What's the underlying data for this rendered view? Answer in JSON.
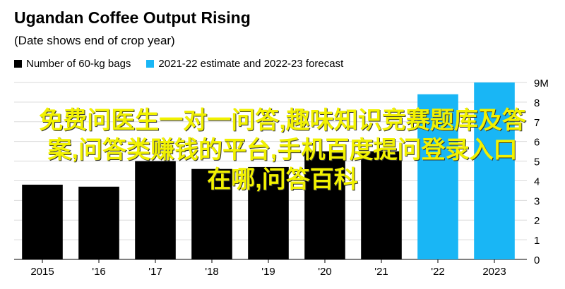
{
  "chart_data": {
    "type": "bar",
    "title": "Ugandan Coffee Output Rising",
    "subtitle": "(Date shows end of crop year)",
    "categories": [
      "2015",
      "'16",
      "'17",
      "'18",
      "'19",
      "'20",
      "'21",
      "'22",
      "2023"
    ],
    "values": [
      3.8,
      3.7,
      5.0,
      4.6,
      4.7,
      5.5,
      5.5,
      8.4,
      9.0
    ],
    "series": [
      {
        "name": "Number of 60-kg bags",
        "color": "#000000",
        "categories": [
          "2015",
          "'16",
          "'17",
          "'18",
          "'19",
          "'20",
          "'21"
        ]
      },
      {
        "name": "2021-22 estimate and 2022-23 forecast",
        "color": "#19b6f5",
        "categories": [
          "'22",
          "2023"
        ]
      }
    ],
    "ylim": [
      0,
      9
    ],
    "yticks": [
      "0",
      "1",
      "2",
      "3",
      "4",
      "5",
      "6",
      "7",
      "8",
      "9M"
    ],
    "grid": true,
    "legend_position": "top-left"
  },
  "overlay_text": {
    "line1": "免费问医生一对一问答,趣味知识竞赛题库及答",
    "line2": "案,问答类赚钱的平台,手机百度提问登录入口",
    "line3": "在哪,问答百科"
  }
}
